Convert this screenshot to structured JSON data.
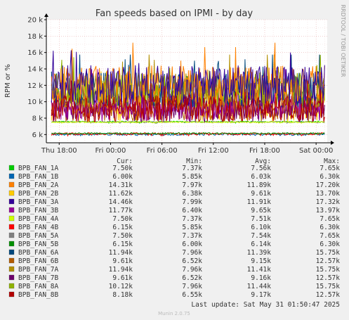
{
  "page": {
    "title": "Fan speeds based on IPMI - by day",
    "side_label": "RRDTOOL / TOBI OETIKER",
    "last_update": "Last update: Sat May 31 01:50:47 2025",
    "footer": "Munin 2.0.75"
  },
  "legend_headers": [
    "Cur:",
    "Min:",
    "Avg:",
    "Max:"
  ],
  "chart_data": {
    "type": "line",
    "title": "Fan speeds based on IPMI - by day",
    "ylabel": "RPM or %",
    "ylim": [
      5000,
      20000
    ],
    "y_ticks": [
      6000,
      8000,
      10000,
      12000,
      14000,
      16000,
      18000,
      20000
    ],
    "y_tick_labels": [
      "6 k",
      "8 k",
      "10 k",
      "12 k",
      "14 k",
      "16 k",
      "18 k",
      "20 k"
    ],
    "x_tick_labels": [
      "Thu 18:00",
      "Fri 00:00",
      "Fri 06:00",
      "Fri 12:00",
      "Fri 18:00",
      "Sat 00:00"
    ],
    "x_tick_positions": [
      1,
      7,
      13,
      19,
      25,
      31
    ],
    "xlim": [
      -0.5,
      32.3
    ],
    "grid": true,
    "series": [
      {
        "name": "BPB_FAN_1A",
        "color": "#00cc00",
        "cur": "7.50k",
        "min": "7.37k",
        "avg": "7.56k",
        "max": "7.65k"
      },
      {
        "name": "BPB_FAN_1B",
        "color": "#0066b3",
        "cur": "6.00k",
        "min": "5.85k",
        "avg": "6.03k",
        "max": "6.30k"
      },
      {
        "name": "BPB_FAN_2A",
        "color": "#ff8000",
        "cur": "14.31k",
        "min": "7.97k",
        "avg": "11.89k",
        "max": "17.20k"
      },
      {
        "name": "BPB_FAN_2B",
        "color": "#ffcc00",
        "cur": "11.62k",
        "min": "6.38k",
        "avg": "9.61k",
        "max": "13.70k"
      },
      {
        "name": "BPB_FAN_3A",
        "color": "#330099",
        "cur": "14.46k",
        "min": "7.99k",
        "avg": "11.91k",
        "max": "17.32k"
      },
      {
        "name": "BPB_FAN_3B",
        "color": "#990099",
        "cur": "11.77k",
        "min": "6.40k",
        "avg": "9.65k",
        "max": "13.97k"
      },
      {
        "name": "BPB_FAN_4A",
        "color": "#ccff00",
        "cur": "7.50k",
        "min": "7.37k",
        "avg": "7.51k",
        "max": "7.65k"
      },
      {
        "name": "BPB_FAN_4B",
        "color": "#ff0000",
        "cur": "6.15k",
        "min": "5.85k",
        "avg": "6.10k",
        "max": "6.30k"
      },
      {
        "name": "BPB_FAN_5A",
        "color": "#808080",
        "cur": "7.50k",
        "min": "7.37k",
        "avg": "7.54k",
        "max": "7.65k"
      },
      {
        "name": "BPB_FAN_5B",
        "color": "#008f00",
        "cur": "6.15k",
        "min": "6.00k",
        "avg": "6.14k",
        "max": "6.30k"
      },
      {
        "name": "BPB_FAN_6A",
        "color": "#00487d",
        "cur": "11.94k",
        "min": "7.96k",
        "avg": "11.39k",
        "max": "15.75k"
      },
      {
        "name": "BPB_FAN_6B",
        "color": "#b35a00",
        "cur": "9.61k",
        "min": "6.52k",
        "avg": "9.15k",
        "max": "12.57k"
      },
      {
        "name": "BPB_FAN_7A",
        "color": "#b38f00",
        "cur": "11.94k",
        "min": "7.96k",
        "avg": "11.41k",
        "max": "15.75k"
      },
      {
        "name": "BPB_FAN_7B",
        "color": "#6b006b",
        "cur": "9.61k",
        "min": "6.52k",
        "avg": "9.16k",
        "max": "12.57k"
      },
      {
        "name": "BPB_FAN_8A",
        "color": "#8fb300",
        "cur": "10.12k",
        "min": "7.96k",
        "avg": "11.44k",
        "max": "15.75k"
      },
      {
        "name": "BPB_FAN_8B",
        "color": "#b30000",
        "cur": "8.18k",
        "min": "6.55k",
        "avg": "9.17k",
        "max": "12.57k"
      }
    ]
  }
}
